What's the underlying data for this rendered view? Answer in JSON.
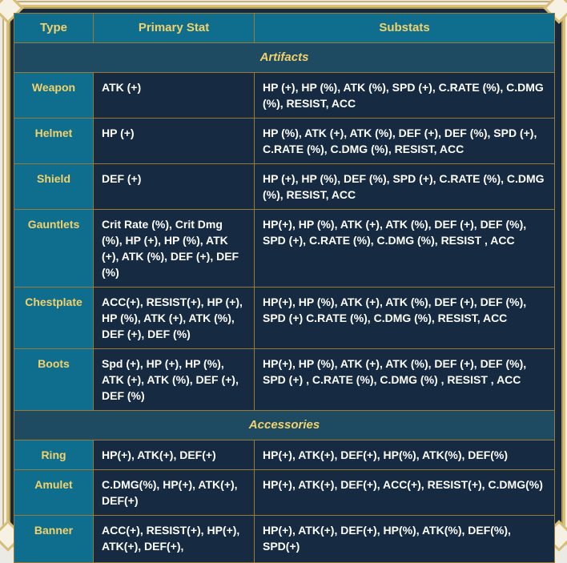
{
  "headers": {
    "type": "Type",
    "primary": "Primary Stat",
    "substats": "Substats"
  },
  "sections": [
    {
      "title": "Artifacts",
      "rows": [
        {
          "type": "Weapon",
          "primary": "ATK (+)",
          "substats": "HP (+), HP (%), ATK (%), SPD (+), C.RATE (%), C.DMG (%), RESIST, ACC"
        },
        {
          "type": "Helmet",
          "primary": "HP (+)",
          "substats": "HP (%), ATK (+), ATK (%), DEF (+), DEF (%), SPD (+), C.RATE (%), C.DMG (%), RESIST, ACC"
        },
        {
          "type": "Shield",
          "primary": "DEF (+)",
          "substats": "HP (+), HP (%), DEF (%), SPD (+), C.RATE (%), C.DMG (%), RESIST, ACC"
        },
        {
          "type": "Gauntlets",
          "primary": "Crit Rate (%), Crit Dmg (%), HP (+), HP (%), ATK (+), ATK (%), DEF (+), DEF (%)",
          "substats": "HP(+), HP (%), ATK (+), ATK (%), DEF (+), DEF (%), SPD (+), C.RATE (%), C.DMG (%), RESIST , ACC"
        },
        {
          "type": "Chestplate",
          "primary": "ACC(+), RESIST(+), HP (+), HP (%), ATK (+), ATK (%), DEF (+), DEF (%)",
          "substats": "HP(+), HP (%), ATK (+), ATK (%), DEF (+), DEF (%), SPD (+) C.RATE (%), C.DMG (%), RESIST, ACC"
        },
        {
          "type": "Boots",
          "primary": "Spd (+), HP (+), HP (%), ATK (+), ATK (%), DEF (+), DEF (%)",
          "substats": "HP(+), HP (%), ATK (+), ATK (%), DEF (+), DEF (%), SPD (+) , C.RATE (%), C.DMG (%) , RESIST , ACC"
        }
      ]
    },
    {
      "title": "Accessories",
      "rows": [
        {
          "type": "Ring",
          "primary": "HP(+), ATK(+), DEF(+)",
          "substats": "HP(+), ATK(+), DEF(+), HP(%), ATK(%), DEF(%)"
        },
        {
          "type": "Amulet",
          "primary": "C.DMG(%), HP(+), ATK(+), DEF(+)",
          "substats": "HP(+), ATK(+), DEF(+), ACC(+), RESIST(+), C.DMG(%)"
        },
        {
          "type": "Banner",
          "primary": "ACC(+), RESIST(+), HP(+), ATK(+), DEF(+),",
          "substats": "HP(+), ATK(+), DEF(+), HP(%), ATK(%), DEF(%), SPD(+)"
        }
      ]
    }
  ]
}
